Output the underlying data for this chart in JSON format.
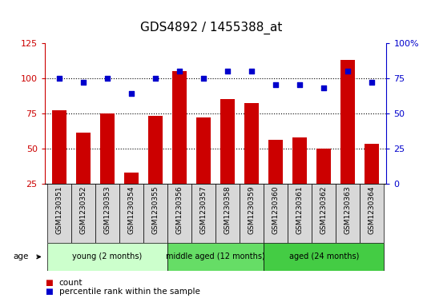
{
  "title": "GDS4892 / 1455388_at",
  "samples": [
    "GSM1230351",
    "GSM1230352",
    "GSM1230353",
    "GSM1230354",
    "GSM1230355",
    "GSM1230356",
    "GSM1230357",
    "GSM1230358",
    "GSM1230359",
    "GSM1230360",
    "GSM1230361",
    "GSM1230362",
    "GSM1230363",
    "GSM1230364"
  ],
  "counts": [
    77,
    61,
    75,
    33,
    73,
    105,
    72,
    85,
    82,
    56,
    58,
    50,
    113,
    53
  ],
  "percentiles": [
    75,
    72,
    75,
    64,
    75,
    80,
    75,
    80,
    80,
    70,
    70,
    68,
    80,
    72
  ],
  "bar_color": "#cc0000",
  "dot_color": "#0000cc",
  "ylim_left": [
    25,
    125
  ],
  "ylim_right": [
    0,
    100
  ],
  "yticks_left": [
    25,
    50,
    75,
    100,
    125
  ],
  "yticks_right": [
    0,
    25,
    50,
    75,
    100
  ],
  "ytick_labels_right": [
    "0",
    "25",
    "50",
    "75",
    "100%"
  ],
  "grid_values": [
    50,
    75,
    100
  ],
  "groups": [
    {
      "label": "young (2 months)",
      "start": 0,
      "end": 4,
      "color": "#ccffcc"
    },
    {
      "label": "middle aged (12 months)",
      "start": 5,
      "end": 8,
      "color": "#66dd66"
    },
    {
      "label": "aged (24 months)",
      "start": 9,
      "end": 13,
      "color": "#44cc44"
    }
  ],
  "age_label": "age",
  "legend_count_label": "count",
  "legend_percentile_label": "percentile rank within the sample",
  "title_fontsize": 11,
  "tick_fontsize": 8,
  "label_fontsize": 6.5,
  "group_fontsize": 7,
  "legend_fontsize": 7.5,
  "axis_label_color_left": "#cc0000",
  "axis_label_color_right": "#0000cc",
  "bg_color": "#ffffff",
  "cell_color": "#d8d8d8"
}
